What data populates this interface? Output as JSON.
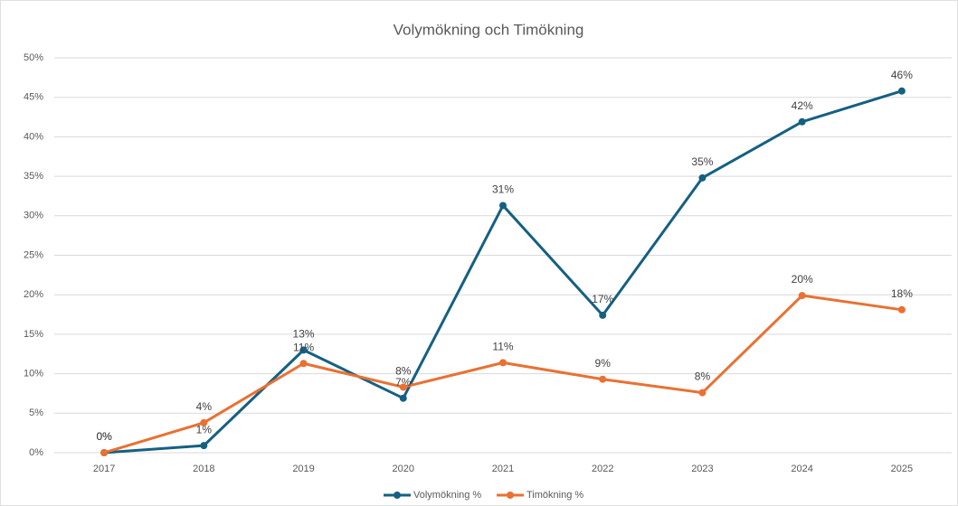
{
  "chart_data": {
    "type": "line",
    "title": "Volymökning och Timökning",
    "categories": [
      "2017",
      "2018",
      "2019",
      "2020",
      "2021",
      "2022",
      "2023",
      "2024",
      "2025"
    ],
    "series": [
      {
        "name": "Volymökning %",
        "color": "#156082",
        "values": [
          0,
          0.9,
          13,
          6.9,
          31.3,
          17.4,
          34.8,
          41.9,
          45.8
        ],
        "value_labels": [
          "0%",
          "1%",
          "13%",
          "7%",
          "31%",
          "17%",
          "35%",
          "42%",
          "46%"
        ]
      },
      {
        "name": "Timökning %",
        "color": "#e97132",
        "values": [
          0,
          3.8,
          11.3,
          8.3,
          11.4,
          9.3,
          7.6,
          19.9,
          18.1
        ],
        "value_labels": [
          "0%",
          "4%",
          "11%",
          "8%",
          "11%",
          "9%",
          "8%",
          "20%",
          "18%"
        ]
      }
    ],
    "ylim": [
      0,
      50
    ],
    "yticks": [
      {
        "value": 0,
        "label": "0%"
      },
      {
        "value": 5,
        "label": "5%"
      },
      {
        "value": 10,
        "label": "10%"
      },
      {
        "value": 15,
        "label": "15%"
      },
      {
        "value": 20,
        "label": "20%"
      },
      {
        "value": 25,
        "label": "25%"
      },
      {
        "value": 30,
        "label": "30%"
      },
      {
        "value": 35,
        "label": "35%"
      },
      {
        "value": 40,
        "label": "40%"
      },
      {
        "value": 45,
        "label": "45%"
      },
      {
        "value": 50,
        "label": "50%"
      }
    ],
    "grid": true,
    "legend": "bottom"
  }
}
